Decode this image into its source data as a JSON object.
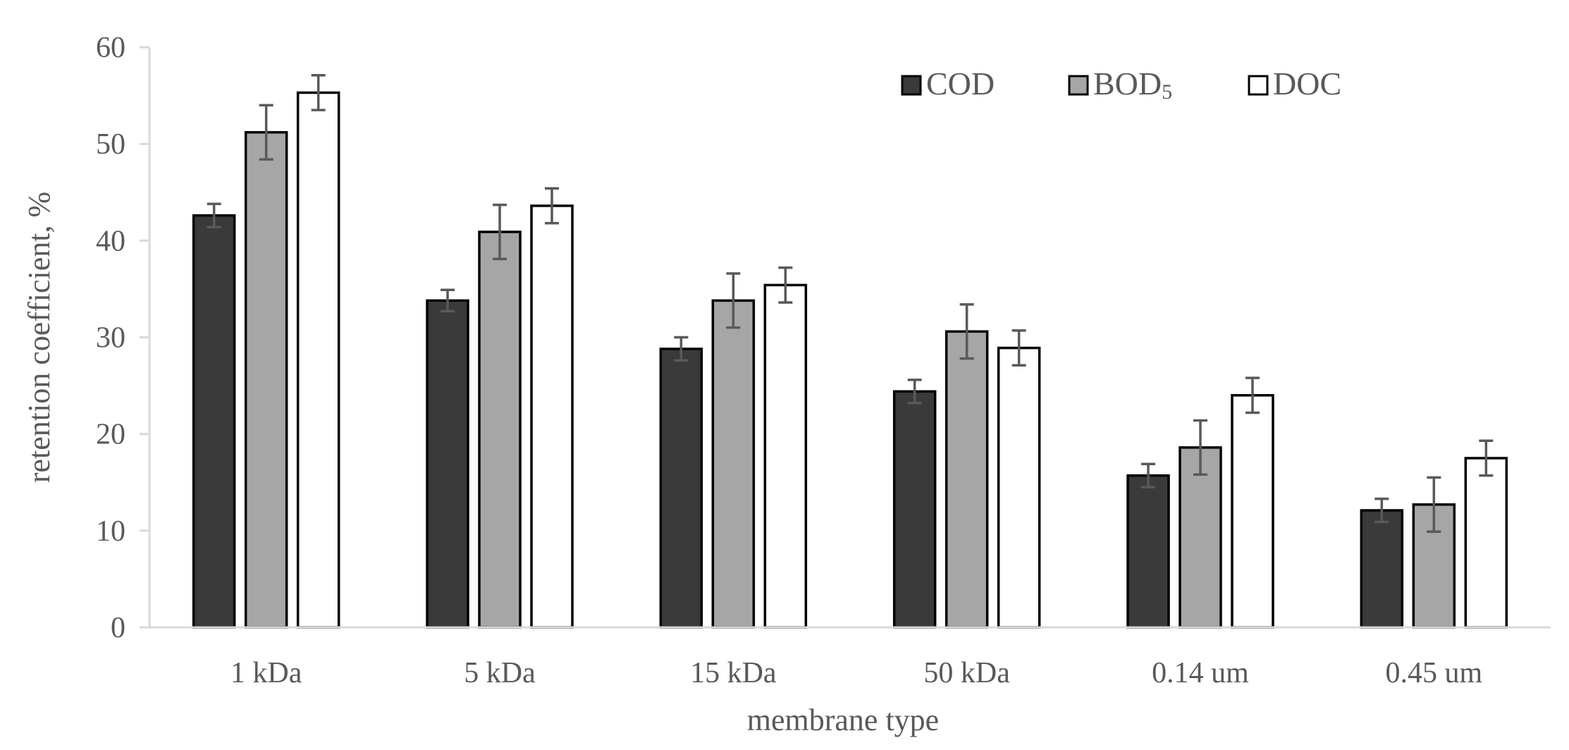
{
  "chart_data": {
    "type": "bar",
    "title": "",
    "xlabel": "membrane type",
    "ylabel": "retention coefficient, %",
    "ylim": [
      0,
      60
    ],
    "yticks": [
      "0",
      "10",
      "20",
      "30",
      "40",
      "50",
      "60"
    ],
    "categories": [
      "1 kDa",
      "5 kDa",
      "15 kDa",
      "50 kDa",
      "0.14 um",
      "0.45 um"
    ],
    "grid": false,
    "legend_position": "top-right",
    "series": [
      {
        "name": "COD",
        "name_main": "COD",
        "name_sub": "",
        "color": "#3a3a3a",
        "values": [
          42.6,
          33.8,
          28.8,
          24.4,
          15.7,
          12.1
        ],
        "errors": [
          1.2,
          1.1,
          1.2,
          1.2,
          1.2,
          1.2
        ]
      },
      {
        "name": "BOD5",
        "name_main": "BOD",
        "name_sub": "5",
        "color": "#a6a6a6",
        "values": [
          51.2,
          40.9,
          33.8,
          30.6,
          18.6,
          12.7
        ],
        "errors": [
          2.8,
          2.8,
          2.8,
          2.8,
          2.8,
          2.8
        ]
      },
      {
        "name": "DOC",
        "name_main": "DOC",
        "name_sub": "",
        "color": "#ffffff",
        "values": [
          55.3,
          43.6,
          35.4,
          28.9,
          24.0,
          17.5
        ],
        "errors": [
          1.8,
          1.8,
          1.8,
          1.8,
          1.8,
          1.8
        ]
      }
    ],
    "colors": {
      "axis": "#d9d9d9",
      "text": "#595959",
      "bar_outline": "#000000",
      "error_bar": "#595959"
    }
  }
}
